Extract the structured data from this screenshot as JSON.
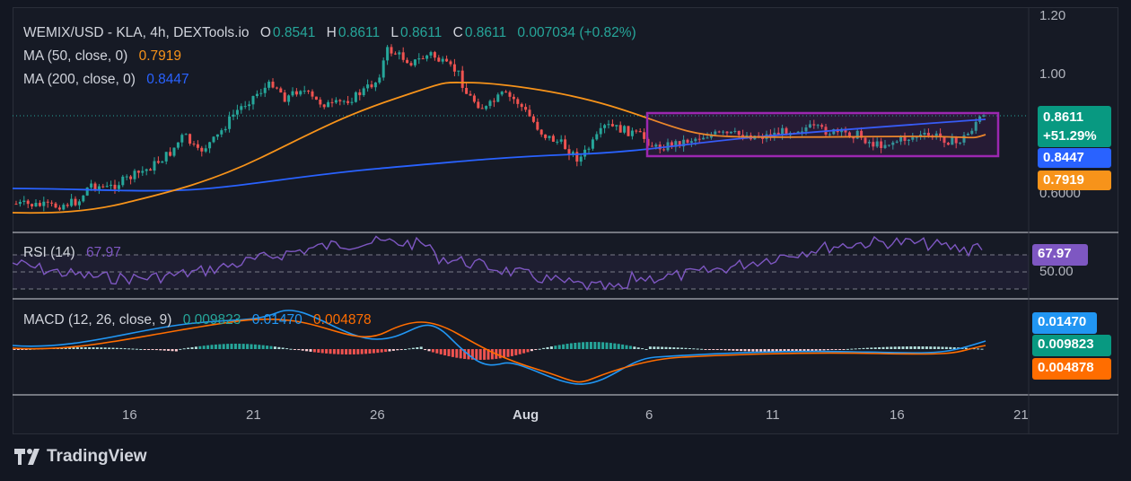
{
  "header": {
    "symbol": "WEMIX/USD - KLA, 4h, DEXTools.io",
    "o_label": "O",
    "o_value": "0.8541",
    "h_label": "H",
    "h_value": "0.8611",
    "l_label": "L",
    "l_value": "0.8611",
    "c_label": "C",
    "c_value": "0.8611",
    "change": "0.007034 (+0.82%)"
  },
  "ma50": {
    "label": "MA (50, close, 0)",
    "value": "0.7919",
    "color": "#f7931a"
  },
  "ma200": {
    "label": "MA (200, close, 0)",
    "value": "0.8447",
    "color": "#2962ff"
  },
  "rsi": {
    "label": "RSI (14)",
    "value": "67.97",
    "color": "#7e57c2"
  },
  "macd": {
    "label": "MACD (12, 26, close, 9)",
    "hist": "0.009823",
    "macd": "0.01470",
    "signal": "0.004878"
  },
  "price_axis": [
    "1.20",
    "1.00",
    "0.6000"
  ],
  "rsi_axis": [
    "50.00"
  ],
  "tags": {
    "price": "0.8611",
    "pct": "+51.29%",
    "ma200": "0.8447",
    "ma50": "0.7919",
    "rsi": "67.97",
    "macd": "0.01470",
    "hist": "0.009823",
    "signal": "0.004878"
  },
  "x_axis": [
    "16",
    "21",
    "26",
    "Aug",
    "6",
    "11",
    "16",
    "21"
  ],
  "branding": "TradingView",
  "colors": {
    "up": "#26a69a",
    "down": "#ef5350",
    "box": "#9c27b0",
    "bg": "#131722"
  },
  "chart_data": {
    "type": "candlestick",
    "title": "WEMIX/USD - KLA, 4h",
    "x_ticks": [
      "16",
      "21",
      "26",
      "Aug",
      "6",
      "11",
      "16",
      "21"
    ],
    "y_ticks": [
      1.2,
      1.0,
      0.6
    ],
    "last_close": 0.8611,
    "change_pct": 51.29,
    "series": [
      {
        "name": "MA (50, close, 0)",
        "last": 0.7919
      },
      {
        "name": "MA (200, close, 0)",
        "last": 0.8447
      },
      {
        "name": "RSI (14)",
        "last": 67.97
      },
      {
        "name": "MACD",
        "last": 0.0147
      },
      {
        "name": "Signal",
        "last": 0.004878
      },
      {
        "name": "Histogram",
        "last": 0.009823
      }
    ]
  }
}
